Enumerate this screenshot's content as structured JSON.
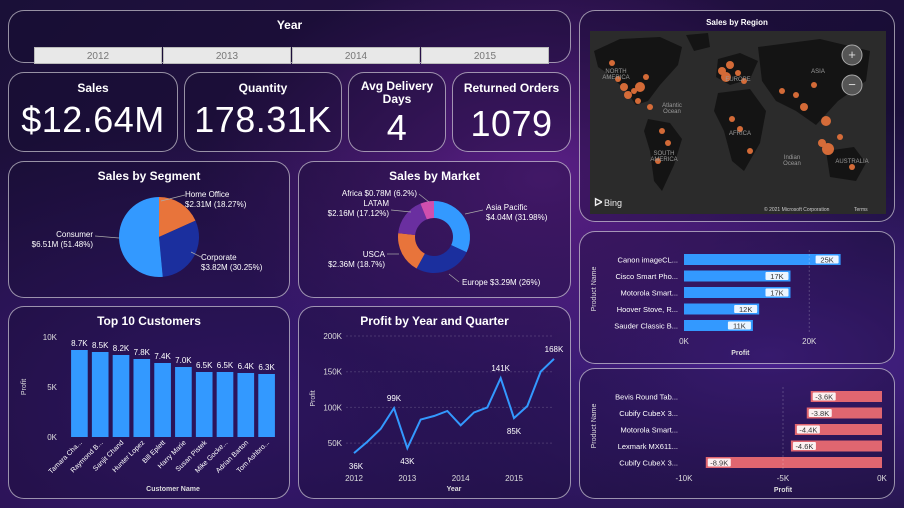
{
  "filter": {
    "title": "Year",
    "years": [
      "2012",
      "2013",
      "2014",
      "2015"
    ]
  },
  "kpis": {
    "sales": {
      "title": "Sales",
      "value": "$12.64M"
    },
    "quantity": {
      "title": "Quantity",
      "value": "178.31K"
    },
    "delivery": {
      "title_line1": "Avg Delivery",
      "title_line2": "Days",
      "value": "4"
    },
    "returned": {
      "title": "Returned Orders",
      "value": "1079"
    }
  },
  "map": {
    "title": "Sales by Region",
    "bing": "Bing",
    "copyright": "© 2021 Microsoft Corporation",
    "terms": "Terms",
    "labels": [
      "NORTH",
      "AMERICA",
      "EUROPE",
      "ASIA",
      "AFRICA",
      "SOUTH",
      "AMERICA",
      "Atlantic",
      "Ocean",
      "Indian",
      "Ocean",
      "AUSTRALIA"
    ]
  },
  "colors": {
    "blue": "#3399ff",
    "navy": "#1b2f9e",
    "orange": "#e8743b",
    "purple": "#6a2fa0",
    "pink": "#d04fae",
    "negative": "#e06670"
  },
  "chart_data": [
    {
      "id": "segment",
      "type": "pie",
      "title": "Sales by Segment",
      "slices": [
        {
          "name": "Consumer",
          "label": "$6.51M (51.48%)",
          "value": 6.51,
          "pct": 51.48,
          "color": "#3399ff"
        },
        {
          "name": "Corporate",
          "label": "$3.82M (30.25%)",
          "value": 3.82,
          "pct": 30.25,
          "color": "#1b2f9e"
        },
        {
          "name": "Home Office",
          "label": "$2.31M (18.27%)",
          "value": 2.31,
          "pct": 18.27,
          "color": "#e8743b"
        }
      ]
    },
    {
      "id": "market",
      "type": "pie",
      "title": "Sales by Market",
      "slices": [
        {
          "name": "Asia Pacific",
          "label": "$4.04M (31.98%)",
          "value": 4.04,
          "pct": 31.98,
          "color": "#3399ff"
        },
        {
          "name": "Europe",
          "label": "$3.29M (26%)",
          "value": 3.29,
          "pct": 26,
          "color": "#1b2f9e"
        },
        {
          "name": "USCA",
          "label": "$2.36M (18.7%)",
          "value": 2.36,
          "pct": 18.7,
          "color": "#e8743b"
        },
        {
          "name": "LATAM",
          "label": "$2.16M (17.12%)",
          "value": 2.16,
          "pct": 17.12,
          "color": "#6a2fa0"
        },
        {
          "name": "Africa",
          "label": "$0.78M (6.2%)",
          "value": 0.78,
          "pct": 6.2,
          "color": "#d04fae"
        }
      ]
    },
    {
      "id": "customers",
      "type": "bar",
      "title": "Top 10 Customers",
      "xlabel": "Customer Name",
      "ylabel": "Profit",
      "categories": [
        "Tamara Cha...",
        "Raymond B...",
        "Sanjit Chand",
        "Hunter Lopez",
        "Bill Eplett",
        "Harry Marie",
        "Susan Pistek",
        "Mike Gocke...",
        "Adrian Barton",
        "Tom Ashbro..."
      ],
      "values": [
        8.7,
        8.5,
        8.2,
        7.8,
        7.4,
        7.0,
        6.5,
        6.5,
        6.4,
        6.3
      ],
      "labels": [
        "8.7K",
        "8.5K",
        "8.2K",
        "7.8K",
        "7.4K",
        "7.0K",
        "6.5K",
        "6.5K",
        "6.4K",
        "6.3K"
      ],
      "yticks": [
        "0K",
        "5K",
        "10K"
      ],
      "ylim": [
        0,
        10
      ]
    },
    {
      "id": "profit_quarter",
      "type": "line",
      "title": "Profit by Year and Quarter",
      "xlabel": "Year",
      "ylabel": "Profit",
      "x": [
        "2012 Q1",
        "2012 Q2",
        "2012 Q3",
        "2012 Q4",
        "2013 Q1",
        "2013 Q2",
        "2013 Q3",
        "2013 Q4",
        "2014 Q1",
        "2014 Q2",
        "2014 Q3",
        "2014 Q4",
        "2015 Q1",
        "2015 Q2",
        "2015 Q3",
        "2015 Q4"
      ],
      "values": [
        36,
        52,
        70,
        99,
        43,
        83,
        88,
        95,
        75,
        93,
        100,
        141,
        85,
        102,
        150,
        168
      ],
      "point_labels": [
        {
          "index": 0,
          "text": "36K"
        },
        {
          "index": 3,
          "text": "99K"
        },
        {
          "index": 4,
          "text": "43K"
        },
        {
          "index": 11,
          "text": "141K"
        },
        {
          "index": 12,
          "text": "85K"
        },
        {
          "index": 15,
          "text": "168K"
        }
      ],
      "xticks": [
        "2012",
        "2013",
        "2014",
        "2015"
      ],
      "yticks": [
        "50K",
        "100K",
        "150K",
        "200K"
      ],
      "ylim": [
        25,
        200
      ]
    },
    {
      "id": "top_products",
      "type": "bar",
      "orientation": "horizontal",
      "xlabel": "Profit",
      "ylabel": "Product Name",
      "categories": [
        "Canon imageCL...",
        "Cisco Smart Pho...",
        "Motorola Smart...",
        "Hoover Stove, R...",
        "Sauder Classic B..."
      ],
      "values": [
        25,
        17,
        17,
        12,
        11
      ],
      "labels": [
        "25K",
        "17K",
        "17K",
        "12K",
        "11K"
      ],
      "xticks": [
        "0K",
        "20K"
      ],
      "xlim": [
        0,
        28
      ]
    },
    {
      "id": "bottom_products",
      "type": "bar",
      "orientation": "horizontal",
      "xlabel": "Profit",
      "ylabel": "Product Name",
      "categories": [
        "Bevis Round Tab...",
        "Cubify CubeX 3...",
        "Motorola Smart...",
        "Lexmark MX611...",
        "Cubify CubeX 3..."
      ],
      "values": [
        -3.6,
        -3.8,
        -4.4,
        -4.6,
        -8.9
      ],
      "labels": [
        "-3.6K",
        "-3.8K",
        "-4.4K",
        "-4.6K",
        "-8.9K"
      ],
      "xticks": [
        "-10K",
        "-5K",
        "0K"
      ],
      "xlim": [
        -10,
        0
      ]
    }
  ]
}
